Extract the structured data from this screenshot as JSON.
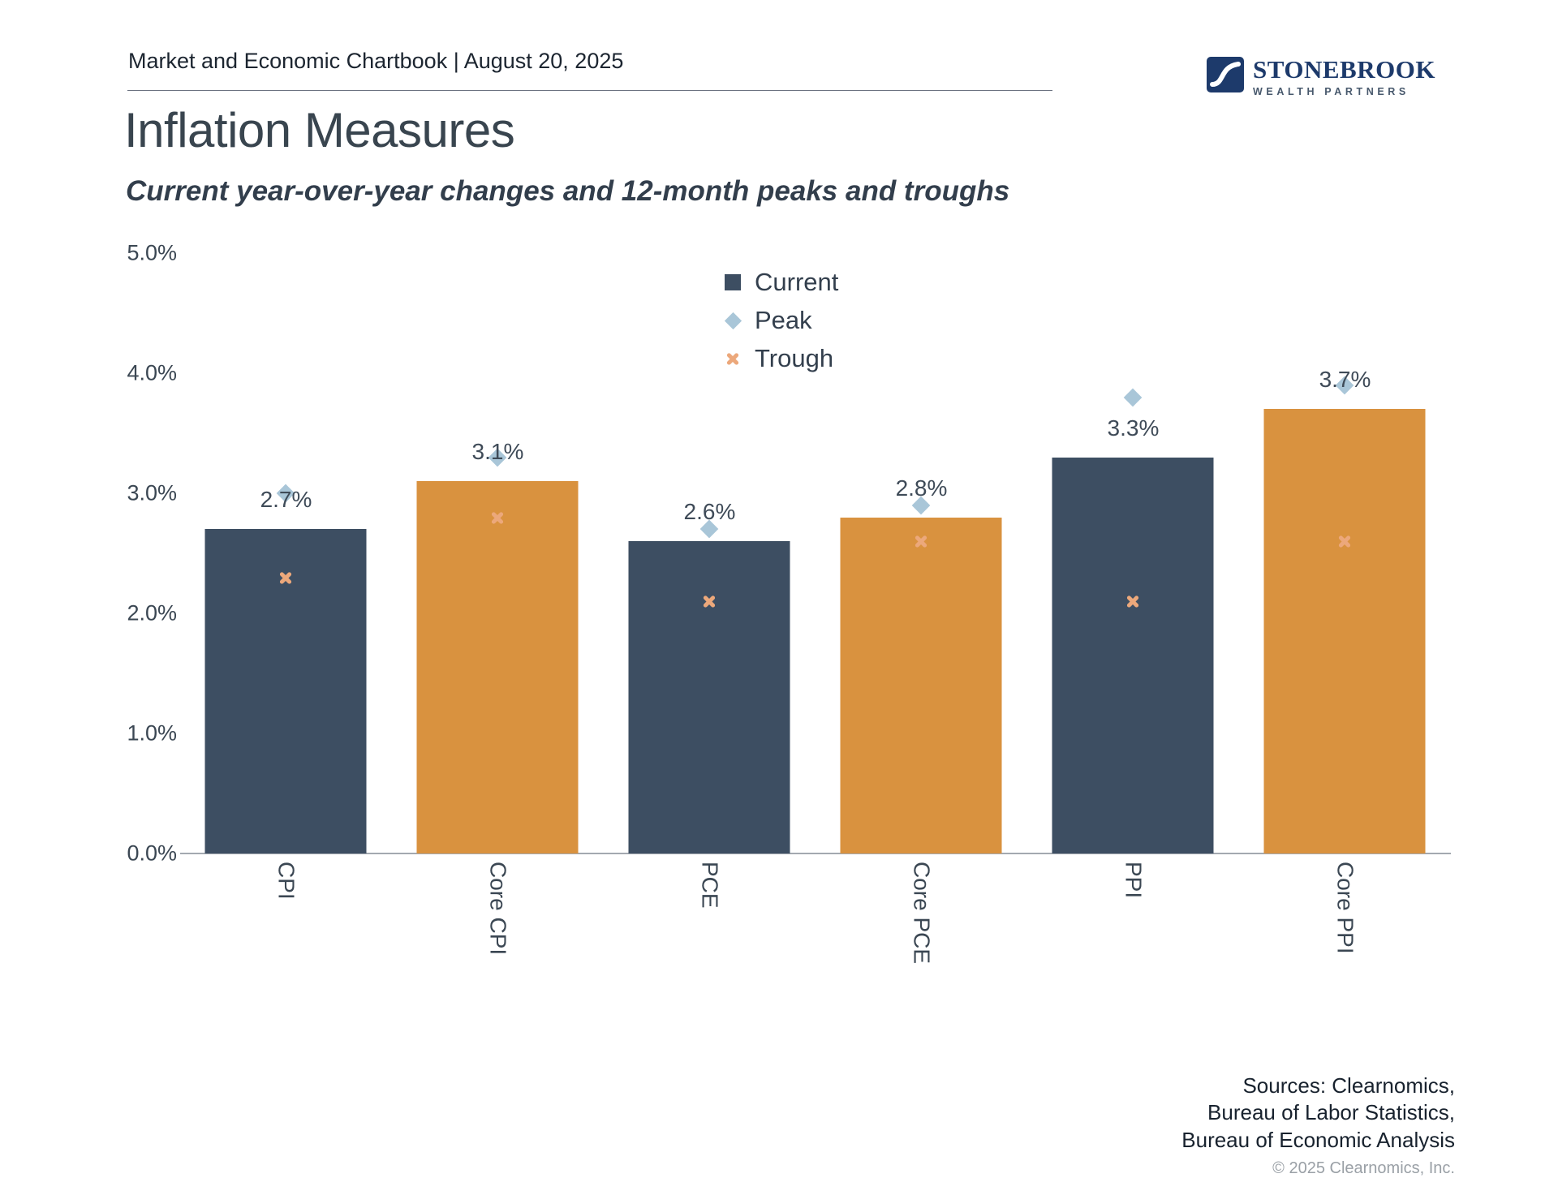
{
  "header": {
    "title": "Market and Economic Chartbook | August 20, 2025",
    "logo": {
      "name": "STONEBROOK",
      "tagline": "WEALTH PARTNERS"
    }
  },
  "title": "Inflation Measures",
  "subtitle": "Current year-over-year changes and 12-month peaks and troughs",
  "chart_data": {
    "type": "bar",
    "title": "Inflation Measures",
    "subtitle": "Current year-over-year changes and 12-month peaks and troughs",
    "categories": [
      "CPI",
      "Core CPI",
      "PCE",
      "Core PCE",
      "PPI",
      "Core PPI"
    ],
    "series": [
      {
        "name": "Current",
        "marker": "square",
        "values": [
          2.7,
          3.1,
          2.6,
          2.8,
          3.3,
          3.7
        ]
      },
      {
        "name": "Peak",
        "marker": "diamond",
        "values": [
          3.0,
          3.3,
          2.7,
          2.9,
          3.8,
          3.9
        ]
      },
      {
        "name": "Trough",
        "marker": "x",
        "values": [
          2.3,
          2.8,
          2.1,
          2.6,
          2.1,
          2.6
        ]
      }
    ],
    "bar_value_labels": [
      "2.7%",
      "3.1%",
      "2.6%",
      "2.8%",
      "3.3%",
      "3.7%"
    ],
    "bar_colors": [
      "#3d4e62",
      "#d9923f",
      "#3d4e62",
      "#d9923f",
      "#3d4e62",
      "#d9923f"
    ],
    "ylim": [
      0,
      5
    ],
    "ytick_labels": [
      "0.0%",
      "1.0%",
      "2.0%",
      "3.0%",
      "4.0%",
      "5.0%"
    ],
    "grid": false,
    "legend_position": "top-center"
  },
  "colors": {
    "bar_dark": "#3d4e62",
    "bar_orange": "#d9923f",
    "peak_marker": "#a9c6d8",
    "trough_marker": "#eca87b",
    "text": "#3b4753"
  },
  "footer": {
    "sources_lines": [
      "Sources: Clearnomics,",
      "Bureau of Labor Statistics,",
      "Bureau of Economic Analysis"
    ],
    "copyright": "© 2025 Clearnomics, Inc."
  }
}
